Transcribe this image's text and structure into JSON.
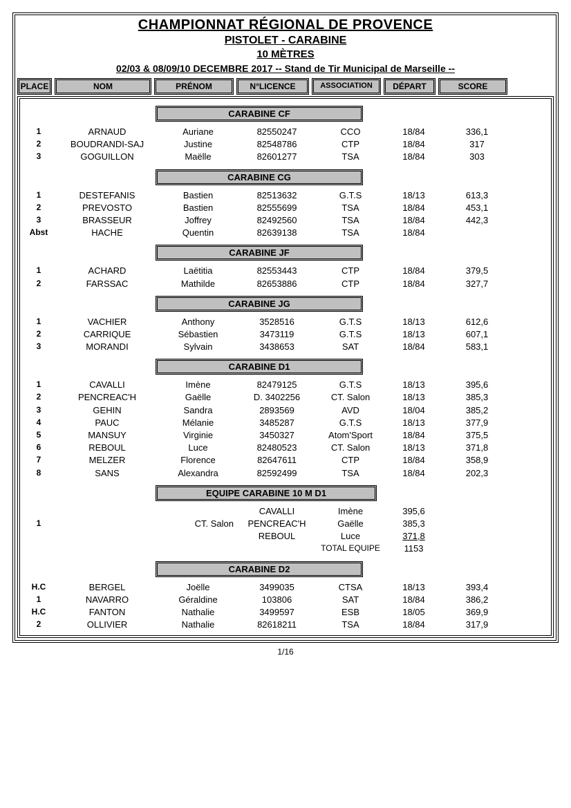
{
  "header": {
    "main": "CHAMPIONNAT RÉGIONAL DE PROVENCE",
    "sub": "PISTOLET - CARABINE",
    "distance": "10 MÈTRES",
    "info": "02/03 & 08/09/10 DECEMBRE 2017  -- Stand de Tir Municipal de Marseille --"
  },
  "columns": {
    "place": "PLACE",
    "nom": "NOM",
    "prenom": "PRÉNOM",
    "licence": "N°LICENCE",
    "assoc": "ASSOCIATION",
    "depart": "DÉPART",
    "score": "SCORE"
  },
  "pagenum": "1/16",
  "categories": [
    {
      "title": "CARABINE CF",
      "rows": [
        {
          "place": "1",
          "nom": "ARNAUD",
          "prenom": "Auriane",
          "lic": "82550247",
          "assoc": "CCO",
          "dep": "18/84",
          "score": "336,1"
        },
        {
          "place": "2",
          "nom": "BOUDRANDI-SAJ",
          "prenom": "Justine",
          "lic": "82548786",
          "assoc": "CTP",
          "dep": "18/84",
          "score": "317"
        },
        {
          "place": "3",
          "nom": "GOGUILLON",
          "prenom": "Maëlle",
          "lic": "82601277",
          "assoc": "TSA",
          "dep": "18/84",
          "score": "303"
        }
      ]
    },
    {
      "title": "CARABINE CG",
      "rows": [
        {
          "place": "1",
          "nom": "DESTEFANIS",
          "prenom": "Bastien",
          "lic": "82513632",
          "assoc": "G.T.S",
          "dep": "18/13",
          "score": "613,3"
        },
        {
          "place": "2",
          "nom": "PREVOSTO",
          "prenom": "Bastien",
          "lic": "82555699",
          "assoc": "TSA",
          "dep": "18/84",
          "score": "453,1"
        },
        {
          "place": "3",
          "nom": "BRASSEUR",
          "prenom": "Joffrey",
          "lic": "82492560",
          "assoc": "TSA",
          "dep": "18/84",
          "score": "442,3"
        },
        {
          "place": "Abst",
          "nom": "HACHE",
          "prenom": "Quentin",
          "lic": "82639138",
          "assoc": "TSA",
          "dep": "18/84",
          "score": ""
        }
      ]
    },
    {
      "title": "CARABINE JF",
      "rows": [
        {
          "place": "1",
          "nom": "ACHARD",
          "prenom": "Laëtitia",
          "lic": "82553443",
          "assoc": "CTP",
          "dep": "18/84",
          "score": "379,5"
        },
        {
          "place": "2",
          "nom": "FARSSAC",
          "prenom": "Mathilde",
          "lic": "82653886",
          "assoc": "CTP",
          "dep": "18/84",
          "score": "327,7"
        }
      ]
    },
    {
      "title": "CARABINE JG",
      "rows": [
        {
          "place": "1",
          "nom": "VACHIER",
          "prenom": "Anthony",
          "lic": "3528516",
          "assoc": "G.T.S",
          "dep": "18/13",
          "score": "612,6"
        },
        {
          "place": "2",
          "nom": "CARRIQUE",
          "prenom": "Sébastien",
          "lic": "3473119",
          "assoc": "G.T.S",
          "dep": "18/13",
          "score": "607,1"
        },
        {
          "place": "3",
          "nom": "MORANDI",
          "prenom": "Sylvain",
          "lic": "3438653",
          "assoc": "SAT",
          "dep": "18/84",
          "score": "583,1"
        }
      ]
    },
    {
      "title": "CARABINE D1",
      "rows": [
        {
          "place": "1",
          "nom": "CAVALLI",
          "prenom": "Imène",
          "lic": "82479125",
          "assoc": "G.T.S",
          "dep": "18/13",
          "score": "395,6"
        },
        {
          "place": "2",
          "nom": "PENCREAC'H",
          "prenom": "Gaëlle",
          "lic": "D. 3402256",
          "assoc": "CT. Salon",
          "dep": "18/13",
          "score": "385,3"
        },
        {
          "place": "3",
          "nom": "GEHIN",
          "prenom": "Sandra",
          "lic": "2893569",
          "assoc": "AVD",
          "dep": "18/04",
          "score": "385,2"
        },
        {
          "place": "4",
          "nom": "PAUC",
          "prenom": "Mélanie",
          "lic": "3485287",
          "assoc": "G.T.S",
          "dep": "18/13",
          "score": "377,9"
        },
        {
          "place": "5",
          "nom": "MANSUY",
          "prenom": "Virginie",
          "lic": "3450327",
          "assoc": "Atom'Sport",
          "dep": "18/84",
          "score": "375,5"
        },
        {
          "place": "6",
          "nom": "REBOUL",
          "prenom": "Luce",
          "lic": "82480523",
          "assoc": "CT. Salon",
          "dep": "18/13",
          "score": "371,8"
        },
        {
          "place": "7",
          "nom": "MELZER",
          "prenom": "Florence",
          "lic": "82647611",
          "assoc": "CTP",
          "dep": "18/84",
          "score": "358,9"
        },
        {
          "place": "8",
          "nom": "SANS",
          "prenom": "Alexandra",
          "lic": "82592499",
          "assoc": "TSA",
          "dep": "18/84",
          "score": "202,3"
        }
      ]
    }
  ],
  "team": {
    "title": "EQUIPE CARABINE  10 M  D1",
    "place": "1",
    "club": "CT. Salon",
    "members": [
      {
        "nom": "CAVALLI",
        "prenom": "Imène",
        "score": "395,6"
      },
      {
        "nom": "PENCREAC'H",
        "prenom": "Gaëlle",
        "score": "385,3"
      },
      {
        "nom": "REBOUL",
        "prenom": "Luce",
        "score": "371,8"
      }
    ],
    "total_label": "TOTAL EQUIPE",
    "total": "1153"
  },
  "category_d2": {
    "title": "CARABINE D2",
    "rows": [
      {
        "place": "H.C",
        "nom": "BERGEL",
        "prenom": "Joëlle",
        "lic": "3499035",
        "assoc": "CTSA",
        "dep": "18/13",
        "score": "393,4"
      },
      {
        "place": "1",
        "nom": "NAVARRO",
        "prenom": "Géraldine",
        "lic": "103806",
        "assoc": "SAT",
        "dep": "18/84",
        "score": "386,2"
      },
      {
        "place": "H.C",
        "nom": "FANTON",
        "prenom": "Nathalie",
        "lic": "3499597",
        "assoc": "ESB",
        "dep": "18/05",
        "score": "369,9"
      },
      {
        "place": "2",
        "nom": "OLLIVIER",
        "prenom": "Nathalie",
        "lic": "82618211",
        "assoc": "TSA",
        "dep": "18/84",
        "score": "317,9"
      }
    ]
  }
}
